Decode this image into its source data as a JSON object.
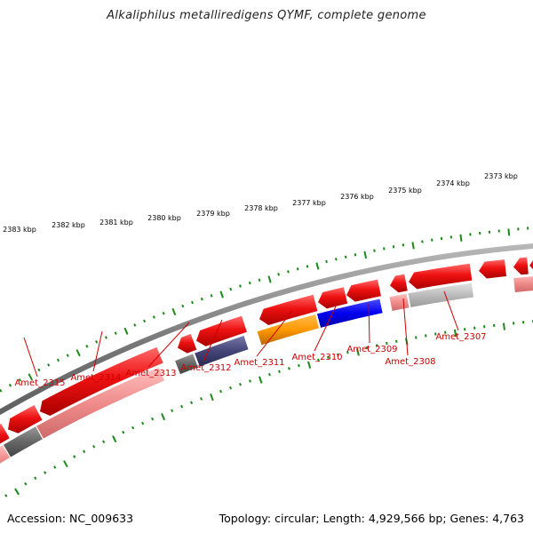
{
  "title": "Alkaliphilus metalliredigens QYMF, complete genome",
  "footer": {
    "accession": "Accession: NC_009633",
    "stats": "Topology: circular; Length: 4,929,566 bp; Genes: 4,763"
  },
  "colors": {
    "backbone": "#8a8a8a",
    "forward_gene": "#ee1111",
    "tick": "#1a8a1a",
    "label": "#cc0000",
    "orange": "#ff9900",
    "blue": "#0000ee",
    "gray": "#666666",
    "slate": "#444477",
    "light_gray": "#bbbbbb",
    "pink": "#f09090"
  },
  "kbp_labels": [
    "2383 kbp",
    "2382 kbp",
    "2381 kbp",
    "2380 kbp",
    "2379 kbp",
    "2378 kbp",
    "2377 kbp",
    "2376 kbp",
    "2375 kbp",
    "2374 kbp",
    "2373 kbp"
  ],
  "genes": [
    {
      "name": "Amet_2315",
      "cog_color": "gray"
    },
    {
      "name": "Amet_2314",
      "cog_color": "pink"
    },
    {
      "name": "Amet_2313",
      "cog_color": "gray"
    },
    {
      "name": "Amet_2312",
      "cog_color": "slate"
    },
    {
      "name": "Amet_2311",
      "cog_color": "orange"
    },
    {
      "name": "Amet_2310",
      "cog_color": "blue"
    },
    {
      "name": "Amet_2309",
      "cog_color": "blue"
    },
    {
      "name": "Amet_2308",
      "cog_color": "pink"
    },
    {
      "name": "Amet_2307",
      "cog_color": "light_gray"
    }
  ]
}
